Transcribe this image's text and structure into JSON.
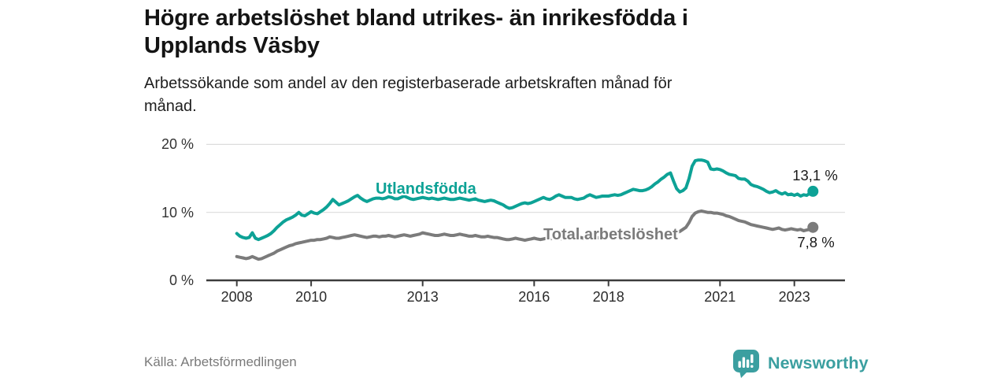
{
  "header": {
    "title_line1": "Högre arbetslöshet bland utrikes- än inrikesfödda i",
    "title_line2": "Upplands Väsby",
    "subtitle_line1": "Arbetssökande som andel av den registerbaserade arbetskraften månad för",
    "subtitle_line2": "månad."
  },
  "footer": {
    "source": "Källa: Arbetsförmedlingen",
    "brand_name": "Newsworthy",
    "brand_logo_icon": "speech-bubble-bar-chart-icon",
    "brand_color": "#3b9fa0"
  },
  "chart_data": {
    "type": "line",
    "title": "Högre arbetslöshet bland utrikes- än inrikesfödda i Upplands Väsby",
    "subtitle": "Arbetssökande som andel av den registerbaserade arbetskraften månad för månad.",
    "x_interval": "monthly",
    "x_start_year": 2008,
    "x_end_year_approx": 2023.5,
    "ylim": [
      0,
      20
    ],
    "grid": "horizontal",
    "legend_position": "inline-labels",
    "y_ticks": [
      "0 %",
      "10 %",
      "20 %"
    ],
    "x_ticks": [
      "2008",
      "2010",
      "2013",
      "2016",
      "2018",
      "2021",
      "2023"
    ],
    "series": [
      {
        "name": "Utlandsfödda",
        "color": "#0da296",
        "end_label": "13,1 %",
        "end_value": 13.1,
        "values": [
          6.9,
          6.5,
          6.3,
          6.2,
          6.3,
          7.0,
          6.2,
          6.0,
          6.2,
          6.4,
          6.6,
          6.9,
          7.3,
          7.8,
          8.2,
          8.6,
          8.9,
          9.1,
          9.3,
          9.6,
          10.0,
          9.6,
          9.5,
          9.8,
          10.1,
          9.9,
          9.8,
          10.1,
          10.4,
          10.8,
          11.3,
          11.9,
          11.5,
          11.1,
          11.3,
          11.5,
          11.7,
          12.0,
          12.3,
          12.5,
          12.1,
          11.8,
          11.6,
          11.8,
          12.0,
          12.1,
          12.1,
          12.0,
          12.1,
          12.3,
          12.2,
          12.0,
          12.0,
          12.2,
          12.4,
          12.2,
          12.0,
          11.9,
          12.0,
          12.1,
          12.2,
          12.1,
          12.0,
          12.1,
          12.0,
          11.9,
          12.0,
          12.1,
          12.0,
          11.9,
          11.9,
          12.0,
          12.1,
          12.0,
          11.9,
          11.8,
          11.9,
          12.0,
          11.8,
          11.7,
          11.6,
          11.7,
          11.8,
          11.7,
          11.5,
          11.3,
          11.1,
          10.8,
          10.6,
          10.7,
          10.9,
          11.1,
          11.3,
          11.4,
          11.3,
          11.4,
          11.6,
          11.8,
          12.0,
          12.2,
          12.0,
          11.9,
          12.1,
          12.4,
          12.6,
          12.4,
          12.2,
          12.2,
          12.2,
          12.0,
          11.9,
          12.0,
          12.1,
          12.4,
          12.6,
          12.4,
          12.2,
          12.3,
          12.4,
          12.4,
          12.4,
          12.5,
          12.6,
          12.5,
          12.6,
          12.8,
          13.0,
          13.2,
          13.4,
          13.3,
          13.2,
          13.2,
          13.3,
          13.5,
          13.8,
          14.2,
          14.5,
          14.9,
          15.2,
          15.6,
          15.8,
          14.6,
          13.5,
          13.0,
          13.2,
          13.6,
          15.0,
          16.8,
          17.6,
          17.7,
          17.7,
          17.6,
          17.4,
          16.4,
          16.3,
          16.4,
          16.3,
          16.1,
          15.8,
          15.6,
          15.5,
          15.4,
          15.0,
          14.9,
          14.9,
          14.6,
          14.1,
          13.9,
          13.8,
          13.6,
          13.4,
          13.1,
          12.9,
          13.0,
          13.2,
          12.9,
          12.7,
          12.9,
          12.6,
          12.7,
          12.5,
          12.7,
          12.4,
          12.6,
          12.5,
          12.8,
          13.1
        ]
      },
      {
        "name": "Total arbetslöshet",
        "color": "#7b7b7b",
        "end_label": "7,8 %",
        "end_value": 7.8,
        "values": [
          3.5,
          3.4,
          3.3,
          3.2,
          3.3,
          3.5,
          3.3,
          3.1,
          3.2,
          3.4,
          3.6,
          3.8,
          4.0,
          4.3,
          4.5,
          4.7,
          4.9,
          5.1,
          5.2,
          5.4,
          5.5,
          5.6,
          5.7,
          5.8,
          5.9,
          5.9,
          6.0,
          6.0,
          6.1,
          6.2,
          6.4,
          6.3,
          6.2,
          6.2,
          6.3,
          6.4,
          6.5,
          6.6,
          6.7,
          6.6,
          6.5,
          6.4,
          6.3,
          6.4,
          6.5,
          6.5,
          6.4,
          6.5,
          6.5,
          6.6,
          6.5,
          6.4,
          6.5,
          6.6,
          6.7,
          6.6,
          6.5,
          6.6,
          6.7,
          6.8,
          7.0,
          6.9,
          6.8,
          6.7,
          6.6,
          6.6,
          6.7,
          6.8,
          6.7,
          6.6,
          6.6,
          6.7,
          6.8,
          6.7,
          6.6,
          6.5,
          6.5,
          6.6,
          6.5,
          6.4,
          6.4,
          6.5,
          6.4,
          6.3,
          6.3,
          6.2,
          6.1,
          6.0,
          6.0,
          6.1,
          6.2,
          6.1,
          6.0,
          5.9,
          6.0,
          6.1,
          6.2,
          6.1,
          6.0,
          6.1,
          6.2,
          6.1,
          6.2,
          6.3,
          6.2,
          6.1,
          6.2,
          6.2,
          6.2,
          6.1,
          6.2,
          6.3,
          6.2,
          6.3,
          6.4,
          6.3,
          6.2,
          6.3,
          6.4,
          6.3,
          6.3,
          6.2,
          6.2,
          6.3,
          6.2,
          6.3,
          6.4,
          6.4,
          6.3,
          6.2,
          6.3,
          6.4,
          6.4,
          6.5,
          6.6,
          6.7,
          6.8,
          6.9,
          7.0,
          7.1,
          7.0,
          6.9,
          7.0,
          7.2,
          7.5,
          7.8,
          8.5,
          9.4,
          9.9,
          10.1,
          10.2,
          10.1,
          10.0,
          10.0,
          9.9,
          9.9,
          9.8,
          9.7,
          9.5,
          9.4,
          9.2,
          9.0,
          8.8,
          8.7,
          8.6,
          8.4,
          8.2,
          8.1,
          8.0,
          7.9,
          7.8,
          7.7,
          7.6,
          7.5,
          7.6,
          7.7,
          7.5,
          7.4,
          7.5,
          7.6,
          7.5,
          7.4,
          7.5,
          7.3,
          7.4,
          7.5,
          7.8
        ]
      }
    ]
  }
}
